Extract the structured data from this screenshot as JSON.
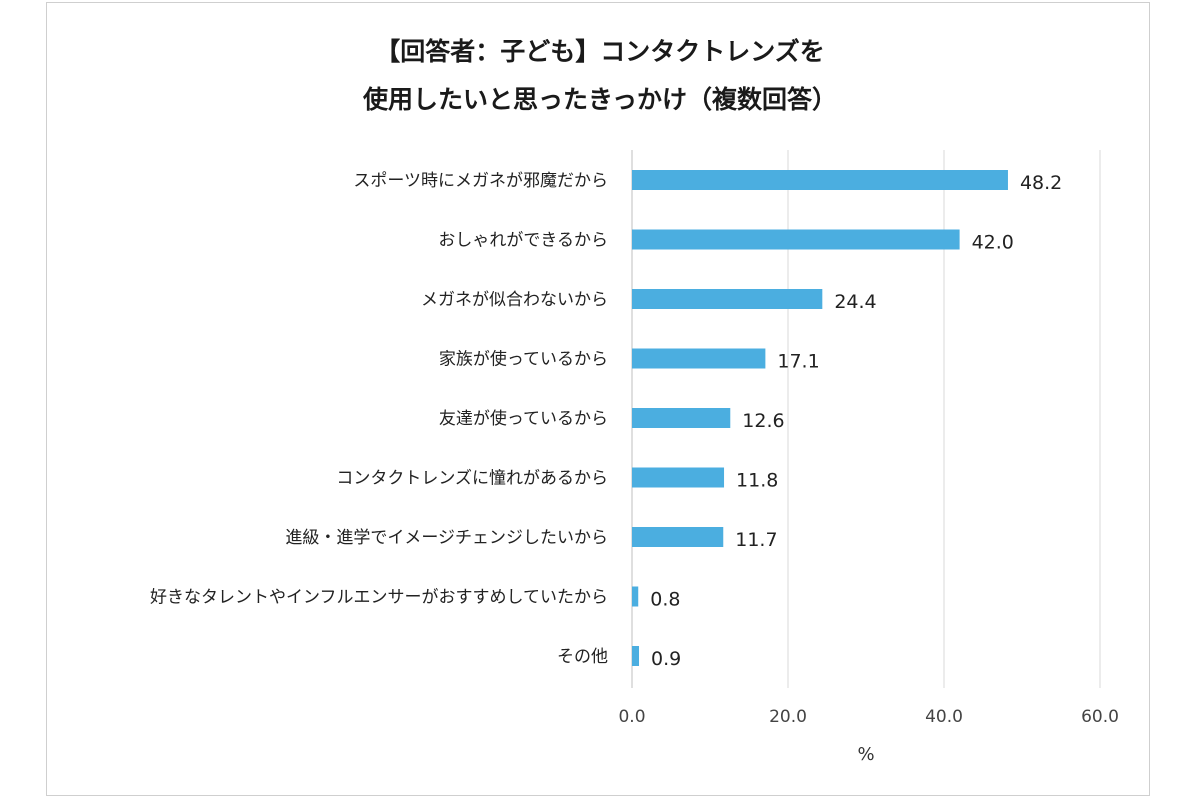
{
  "chart_data": {
    "type": "bar",
    "orientation": "horizontal",
    "title_lines": [
      "【回答者：子ども】コンタクトレンズを",
      "使用したいと思ったきっかけ（複数回答）"
    ],
    "categories": [
      "スポーツ時にメガネが邪魔だから",
      "おしゃれができるから",
      "メガネが似合わないから",
      "家族が使っているから",
      "友達が使っているから",
      "コンタクトレンズに憧れがあるから",
      "進級・進学でイメージチェンジしたいから",
      "好きなタレントやインフルエンサーがおすすめしていたから",
      "その他"
    ],
    "values": [
      48.2,
      42.0,
      24.4,
      17.1,
      12.6,
      11.8,
      11.7,
      0.8,
      0.9
    ],
    "value_labels": [
      "48.2",
      "42.0",
      "24.4",
      "17.1",
      "12.6",
      "11.8",
      "11.7",
      "0.8",
      "0.9"
    ],
    "xlim": [
      0,
      60
    ],
    "xticks": [
      "0.0",
      "20.0",
      "40.0",
      "60.0"
    ],
    "xtick_values": [
      0,
      20,
      40,
      60
    ],
    "xlabel": "%",
    "grid": true,
    "bar_color": "#4baee0",
    "grid_color": "#d9d9d9"
  }
}
